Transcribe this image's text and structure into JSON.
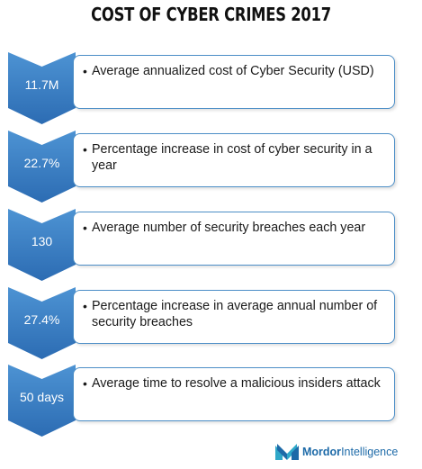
{
  "title": "COST OF CYBER CRIMES 2017",
  "colors": {
    "chevron_top": "#4d93d3",
    "chevron_bottom": "#2c6cb3",
    "card_border": "#4d8fc7",
    "brand": "#1d6aa8"
  },
  "items": [
    {
      "value": "11.7M",
      "bullet": "•",
      "text": "Average annualized cost of Cyber Security (USD)"
    },
    {
      "value": "22.7%",
      "bullet": "•",
      "text": "Percentage increase in cost of cyber security in a year"
    },
    {
      "value": "130",
      "bullet": "•",
      "text": "Average number of security breaches each year"
    },
    {
      "value": "27.4%",
      "bullet": "•",
      "text": "Percentage increase in average annual number of security breaches"
    },
    {
      "value": "50 days",
      "bullet": "•",
      "text": "Average time to resolve a malicious insiders attack"
    }
  ],
  "logo": {
    "brand": "Mordor",
    "suffix": "Intelligence",
    "icon": "mordor-logo-icon"
  }
}
